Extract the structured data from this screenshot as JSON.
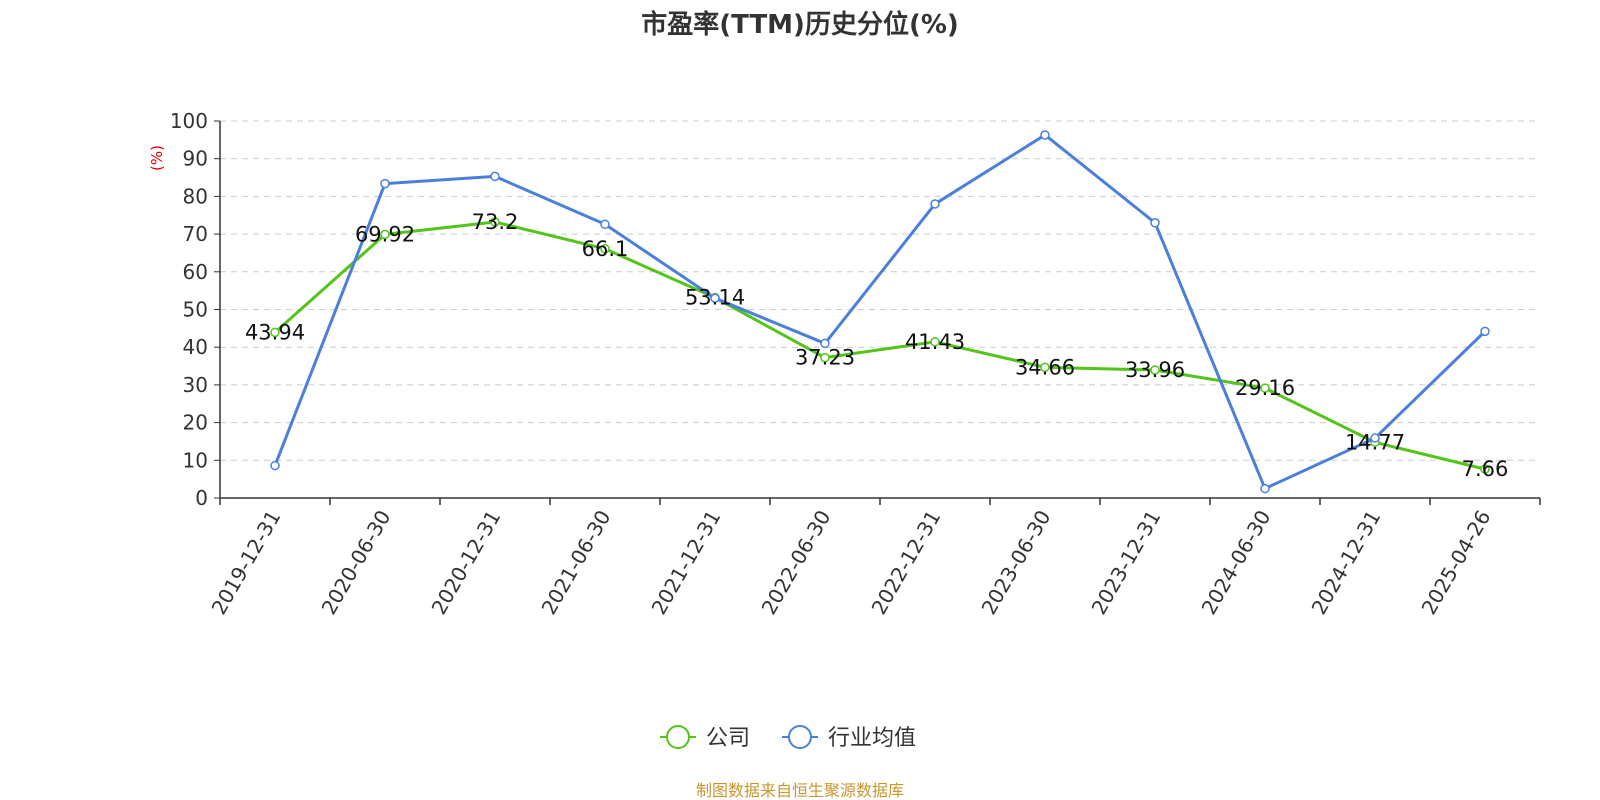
{
  "chart_data": {
    "type": "line",
    "title": "市盈率(TTM)历史分位(%)",
    "ylabel": "(%)",
    "xlabel": "",
    "ylim": [
      0,
      100
    ],
    "yticks": [
      0,
      10,
      20,
      30,
      40,
      50,
      60,
      70,
      80,
      90,
      100
    ],
    "categories": [
      "2019-12-31",
      "2020-06-30",
      "2020-12-31",
      "2021-06-30",
      "2021-12-31",
      "2022-06-30",
      "2022-12-31",
      "2023-06-30",
      "2023-12-31",
      "2024-06-30",
      "2024-12-31",
      "2025-04-26"
    ],
    "series": [
      {
        "name": "公司",
        "color": "#52c41a",
        "values": [
          43.94,
          69.92,
          73.2,
          66.1,
          53.14,
          37.23,
          41.43,
          34.66,
          33.96,
          29.16,
          14.77,
          7.66
        ],
        "show_labels": true
      },
      {
        "name": "行业均值",
        "color": "#4a7fdc",
        "values": [
          8.6,
          83.4,
          85.3,
          72.6,
          53.0,
          41.0,
          78.0,
          96.3,
          73.0,
          2.5,
          15.9,
          44.2
        ],
        "show_labels": false
      }
    ],
    "grid": "horizontal-dashed",
    "legend_position": "bottom-center"
  },
  "colors": {
    "ylabel": "#e60000",
    "source": "#c8962f",
    "axis": "#333333",
    "grid": "#cccccc"
  },
  "source": "制图数据来自恒生聚源数据库"
}
